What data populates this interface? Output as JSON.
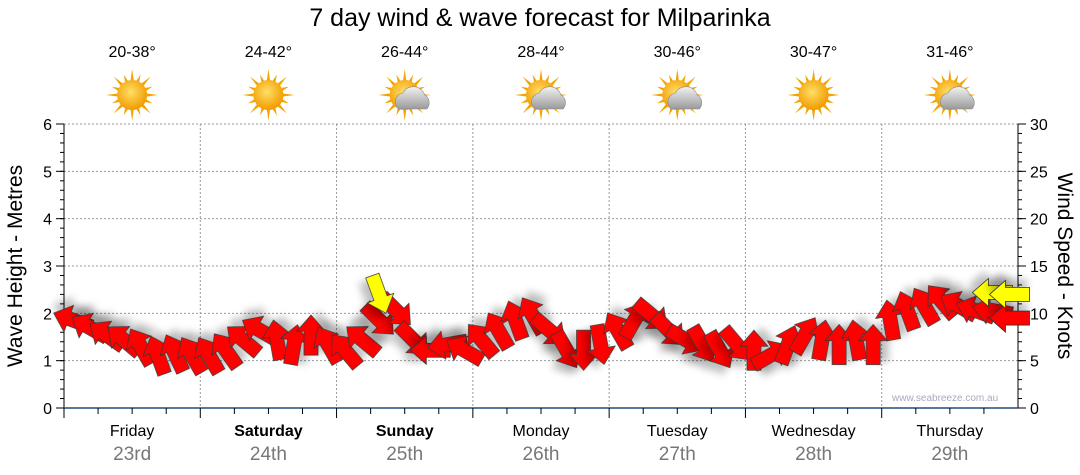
{
  "chart_data": {
    "type": "scatter",
    "title": "7 day wind & wave forecast for Milparinka",
    "ylabel": "Wave Height - Metres",
    "y2label": "Wind Speed - Knots",
    "ylim": [
      0,
      6
    ],
    "y2lim": [
      0,
      30
    ],
    "yticks": [
      "0",
      "1",
      "2",
      "3",
      "4",
      "5",
      "6"
    ],
    "y2ticks": [
      "0",
      "5",
      "10",
      "15",
      "20",
      "25",
      "30"
    ],
    "grid": true,
    "watermark": "www.seabreeze.com.au",
    "days": [
      {
        "day": "Friday",
        "date": "23rd",
        "temp": "20-38°",
        "icon": "sunny",
        "bold": false
      },
      {
        "day": "Saturday",
        "date": "24th",
        "temp": "24-42°",
        "icon": "sunny",
        "bold": true
      },
      {
        "day": "Sunday",
        "date": "25th",
        "temp": "26-44°",
        "icon": "partly-cloudy",
        "bold": true
      },
      {
        "day": "Monday",
        "date": "26th",
        "temp": "28-44°",
        "icon": "partly-cloudy",
        "bold": false
      },
      {
        "day": "Tuesday",
        "date": "27th",
        "temp": "30-46°",
        "icon": "partly-cloudy",
        "bold": false
      },
      {
        "day": "Wednesday",
        "date": "28th",
        "temp": "30-47°",
        "icon": "sunny",
        "bold": false
      },
      {
        "day": "Thursday",
        "date": "29th",
        "temp": "31-46°",
        "icon": "partly-cloudy",
        "bold": false
      }
    ],
    "wind_interval_hours": 3,
    "wind_knots": [
      9.3,
      8.5,
      7.7,
      7.2,
      6.5,
      5.6,
      5.8,
      5.6,
      5.6,
      6.1,
      7.2,
      8.2,
      7.2,
      6.7,
      7.7,
      6.7,
      6.1,
      7.2,
      9.3,
      10.3,
      7.2,
      6.1,
      6.7,
      6.1,
      7.2,
      8.2,
      9.3,
      9.8,
      8.2,
      6.1,
      6.1,
      6.7,
      8.2,
      9.3,
      9.8,
      8.2,
      7.2,
      6.7,
      6.1,
      6.7,
      6.1,
      5.6,
      6.7,
      7.7,
      7.2,
      6.7,
      7.2,
      6.7,
      9.3,
      10.3,
      10.8,
      11.3,
      10.8,
      10.3,
      10.3,
      9.5
    ],
    "wind_direction_deg_screen": [
      200,
      210,
      215,
      220,
      240,
      250,
      245,
      240,
      240,
      235,
      220,
      210,
      260,
      280,
      270,
      240,
      230,
      220,
      45,
      45,
      45,
      180,
      170,
      210,
      230,
      240,
      250,
      240,
      40,
      60,
      90,
      80,
      240,
      300,
      40,
      45,
      30,
      60,
      60,
      50,
      270,
      330,
      290,
      300,
      280,
      270,
      260,
      270,
      260,
      250,
      240,
      230,
      210,
      200,
      190,
      180
    ],
    "gusts": [
      {
        "index": 18,
        "knots": 12.0,
        "direction_deg_screen": 70
      },
      {
        "index": 54,
        "knots": 12.2,
        "direction_deg_screen": 180
      },
      {
        "index": 55,
        "knots": 12.0,
        "direction_deg_screen": 180
      }
    ]
  }
}
